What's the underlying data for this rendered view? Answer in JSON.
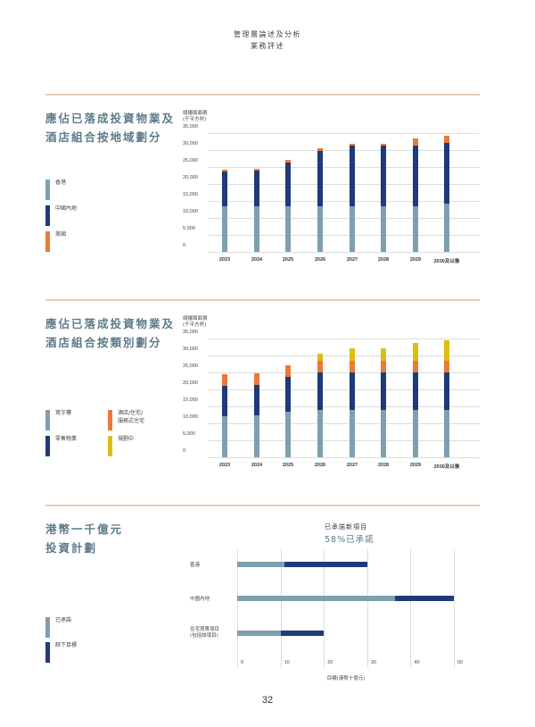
{
  "header": {
    "line1": "管理層論述及分析",
    "line2": "業務評述"
  },
  "colors": {
    "hong_kong": "#7f9faf",
    "mainland": "#1e3a78",
    "us": "#ea7a37",
    "office": "#7f9faf",
    "retail": "#1e3a78",
    "hotel": "#ea7a37",
    "planning": "#ddbd14",
    "committed": "#7f9faf",
    "remaining": "#1e3a78",
    "divider": "#e7cdb7",
    "title": "#5e7b8b"
  },
  "section1": {
    "title_line1": "應佔已落成投資物業及",
    "title_line2": "酒店組合按地域劃分",
    "legend": [
      {
        "label": "香港"
      },
      {
        "label": "中國內地"
      },
      {
        "label": "美國"
      }
    ]
  },
  "section2": {
    "title_line1": "應佔已落成投資物業及",
    "title_line2": "酒店組合按類別劃分",
    "legend": [
      {
        "label": "寫字樓"
      },
      {
        "label": "零售物業"
      },
      {
        "label": "酒店/住宅/",
        "label2": "服務式住宅"
      },
      {
        "label": "規劃中"
      }
    ]
  },
  "section3": {
    "title_line1": "港幣一千億元",
    "title_line2": "投資計劃",
    "subtitle": "已承諾新項目",
    "percent": "58%已承諾",
    "legend": [
      {
        "label": "已承諾"
      },
      {
        "label": "餘下目標"
      }
    ]
  },
  "page_number": "32",
  "chart_data": [
    {
      "type": "bar",
      "stacked": true,
      "title": "應佔已落成投資物業及酒店組合按地域劃分",
      "ylabel_line1": "總樓面面積",
      "ylabel_line2": "(千平方呎)",
      "xlabel": "",
      "categories": [
        "2023",
        "2024",
        "2025",
        "2026",
        "2027",
        "2028",
        "2029",
        "2030及以後"
      ],
      "yticks": [
        "35,000",
        "30,000",
        "25,000",
        "20,000",
        "15,000",
        "10,000",
        "5,000",
        "0"
      ],
      "ylim": [
        0,
        35000
      ],
      "grid": true,
      "legend_position": "left",
      "series": [
        {
          "name": "香港",
          "values": [
            13300,
            13500,
            13500,
            13300,
            13300,
            13300,
            13300,
            14100
          ]
        },
        {
          "name": "中國內地",
          "values": [
            10400,
            10500,
            12900,
            16400,
            18000,
            18000,
            18000,
            18000
          ]
        },
        {
          "name": "美國",
          "values": [
            600,
            600,
            600,
            700,
            600,
            600,
            2200,
            2200
          ]
        }
      ]
    },
    {
      "type": "bar",
      "stacked": true,
      "title": "應佔已落成投資物業及酒店組合按類別劃分",
      "ylabel_line1": "總樓面面積",
      "ylabel_line2": "(千平方呎)",
      "xlabel": "",
      "categories": [
        "2023",
        "2024",
        "2025",
        "2026",
        "2027",
        "2028",
        "2029",
        "2030及以後"
      ],
      "yticks": [
        "35,000",
        "30,000",
        "25,000",
        "20,000",
        "15,000",
        "10,000",
        "5,000",
        "0"
      ],
      "ylim": [
        0,
        35000
      ],
      "grid": true,
      "legend_position": "left",
      "series": [
        {
          "name": "寫字樓",
          "values": [
            12100,
            12400,
            13500,
            13900,
            13900,
            13900,
            13900,
            13900
          ]
        },
        {
          "name": "零售物業",
          "values": [
            9000,
            9000,
            10300,
            11100,
            11100,
            11100,
            11100,
            11100
          ]
        },
        {
          "name": "酒店/住宅/服務式住宅",
          "values": [
            3400,
            3300,
            3300,
            3300,
            3300,
            3300,
            3300,
            3300
          ]
        },
        {
          "name": "規劃中",
          "values": [
            0,
            0,
            0,
            2200,
            3900,
            3900,
            5300,
            6100
          ]
        }
      ]
    },
    {
      "type": "bar",
      "orientation": "horizontal",
      "stacked": true,
      "title": "已承諾新項目 58%已承諾",
      "xlabel": "目標(港幣十億元)",
      "categories": [
        "香港",
        "中國內地",
        "住宅買賣項目(包括該項目)"
      ],
      "category_lines": [
        [
          "香港"
        ],
        [
          "中國內地"
        ],
        [
          "住宅買賣項目",
          "(包括該項目)"
        ]
      ],
      "xticks": [
        "0",
        "10",
        "20",
        "30",
        "40",
        "50"
      ],
      "xlim": [
        0,
        50
      ],
      "grid": true,
      "legend_position": "left",
      "series": [
        {
          "name": "已承諾",
          "values": [
            11,
            36.5,
            10
          ]
        },
        {
          "name": "餘下目標",
          "values": [
            19,
            13.5,
            10
          ]
        }
      ],
      "targets": [
        30,
        50,
        20
      ]
    }
  ]
}
